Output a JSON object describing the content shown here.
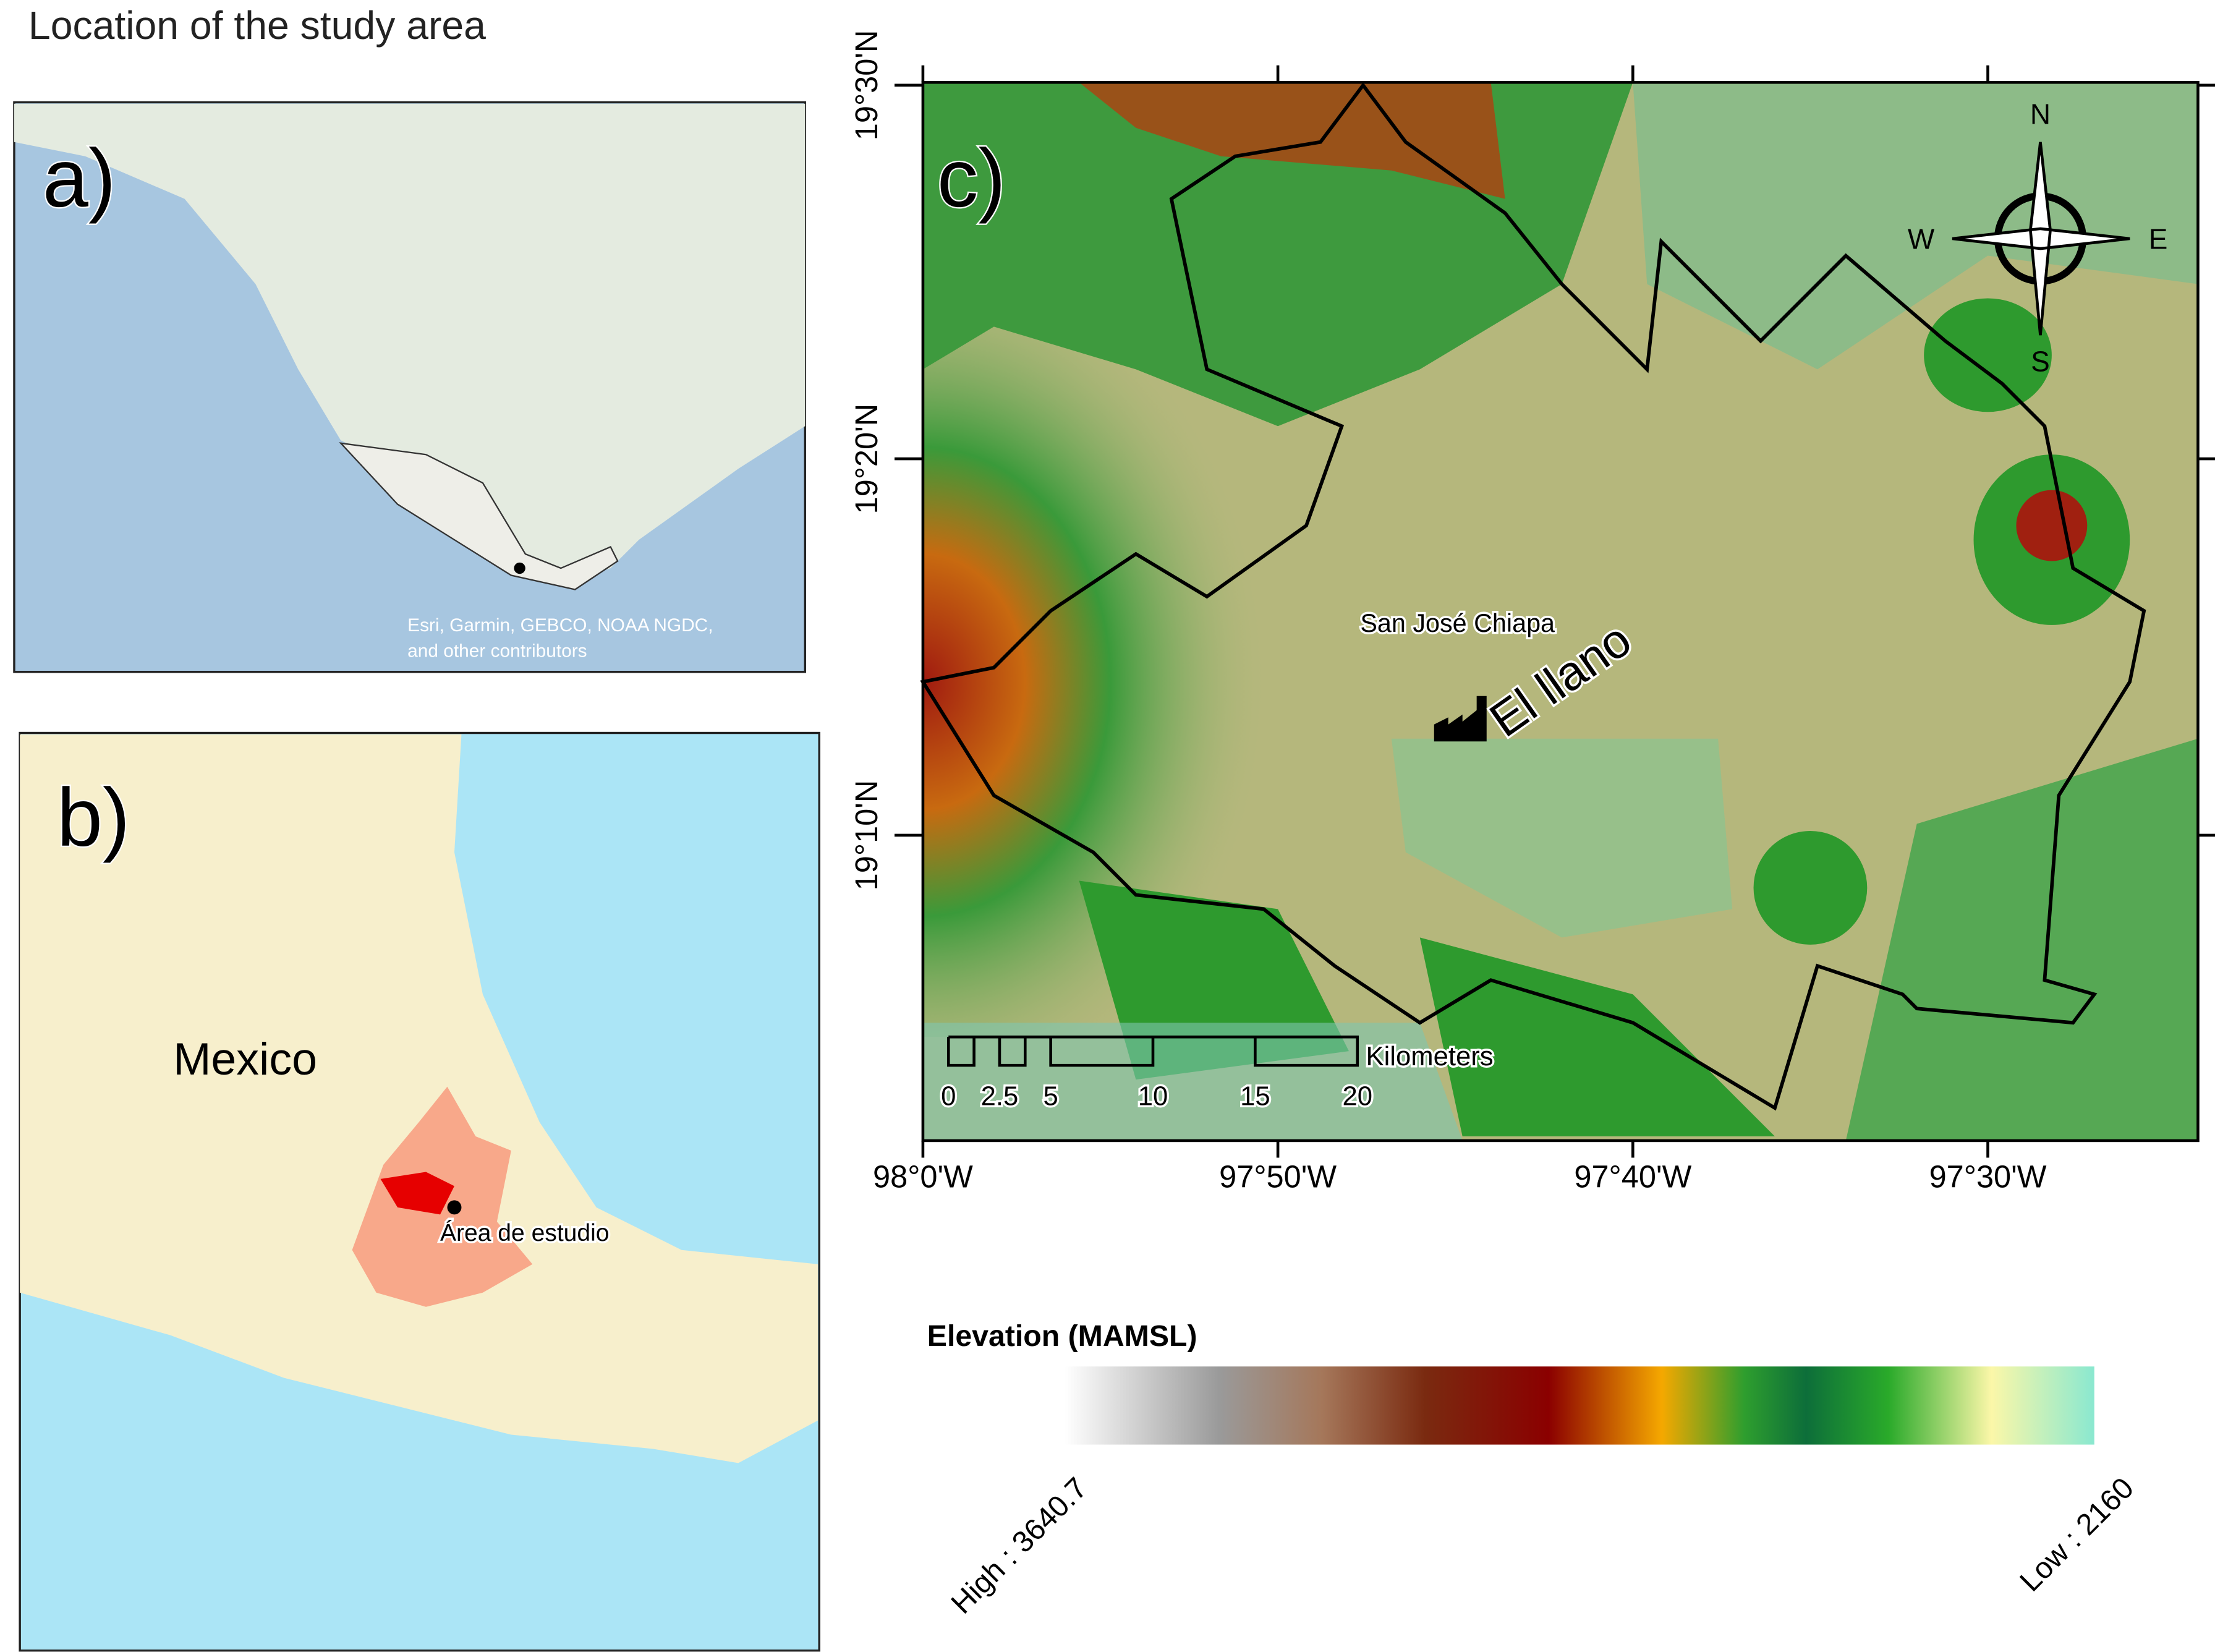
{
  "title": "Location of the study area",
  "panel_a": {
    "label": "a)",
    "attribution": [
      "Esri, Garmin, GEBCO, NOAA NGDC,",
      "and other contributors"
    ]
  },
  "panel_b": {
    "label": "b)",
    "country": "Mexico",
    "study_area": "Área de estudio"
  },
  "panel_c": {
    "label": "c)",
    "town": "San José Chiapa",
    "site": "El llano",
    "compass": {
      "n": "N",
      "s": "S",
      "e": "E",
      "w": "W"
    },
    "lat_ticks": [
      "19°30'N",
      "19°20'N",
      "19°10'N"
    ],
    "lon_ticks": [
      "98°0'W",
      "97°50'W",
      "97°40'W",
      "97°30'W"
    ],
    "scale_bar": {
      "ticks": [
        "0",
        "2.5",
        "5",
        "10",
        "15",
        "20"
      ],
      "unit": "Kilometers"
    }
  },
  "legend": {
    "title": "Elevation (MAMSL)",
    "high": "High : 3640.7",
    "low": "Low : 2160"
  }
}
